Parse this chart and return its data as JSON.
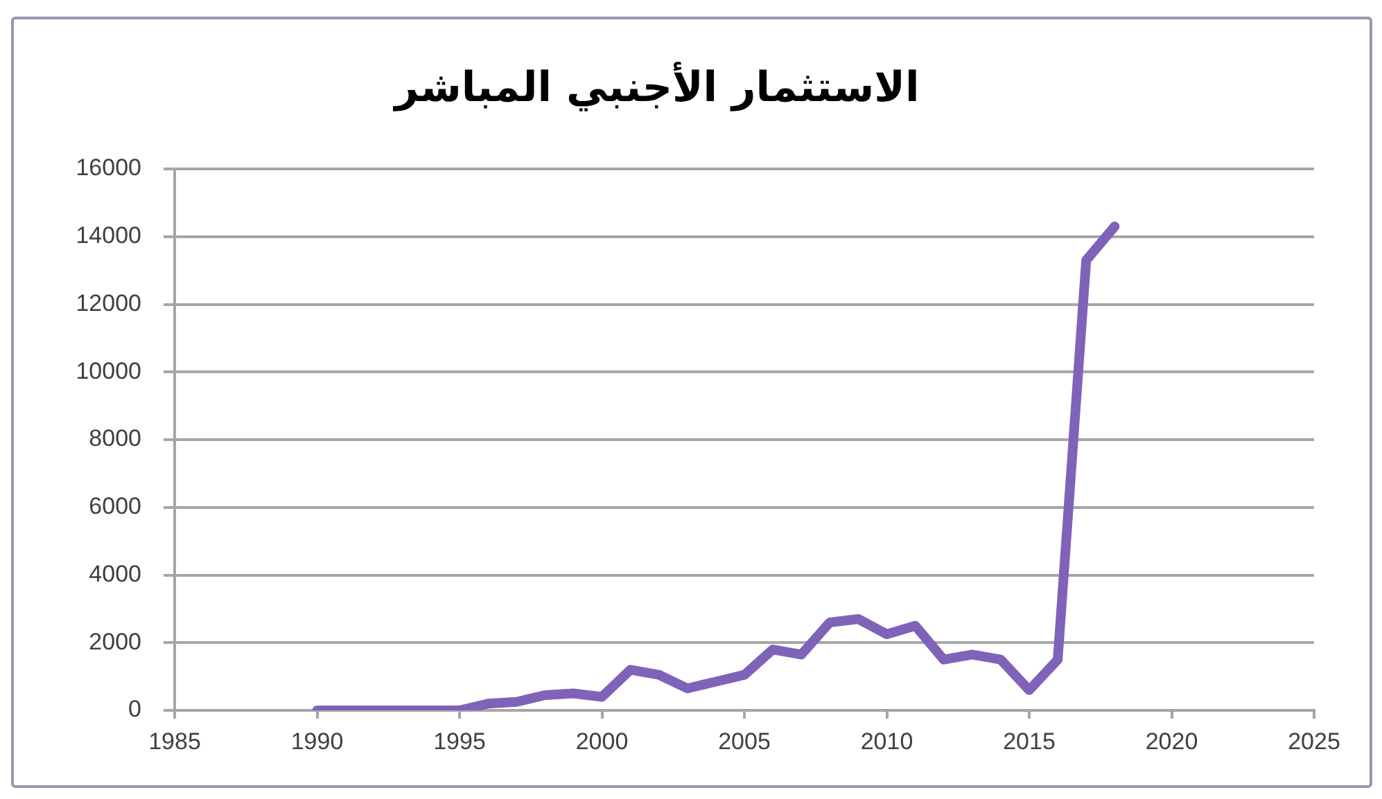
{
  "chart_data": {
    "type": "line",
    "title": "الاستثمار الأجنبي المباشر",
    "x": [
      1990,
      1991,
      1992,
      1993,
      1994,
      1995,
      1996,
      1997,
      1998,
      1999,
      2000,
      2001,
      2002,
      2003,
      2004,
      2005,
      2006,
      2007,
      2008,
      2009,
      2010,
      2011,
      2012,
      2013,
      2014,
      2015,
      2016,
      2017,
      2018
    ],
    "series": [
      {
        "color": "#7f63b8",
        "values": [
          0,
          0,
          0,
          0,
          0,
          0,
          200,
          250,
          450,
          500,
          400,
          1200,
          1050,
          650,
          850,
          1050,
          1800,
          1650,
          2600,
          2700,
          2250,
          2500,
          1500,
          1650,
          1500,
          600,
          1500,
          13300,
          14300
        ]
      }
    ],
    "xlim": [
      1985,
      2025
    ],
    "xticks": [
      1985,
      1990,
      1995,
      2000,
      2005,
      2010,
      2015,
      2020,
      2025
    ],
    "ylim": [
      0,
      16000
    ],
    "yticks": [
      0,
      2000,
      4000,
      6000,
      8000,
      10000,
      12000,
      14000,
      16000
    ],
    "grid": "y",
    "legend": false,
    "marker": "none",
    "line_style": "solid"
  }
}
